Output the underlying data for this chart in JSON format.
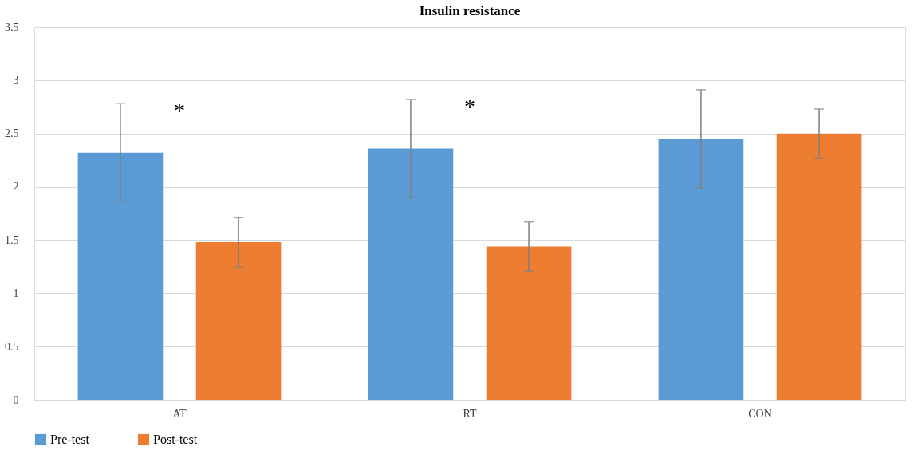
{
  "chart_data": {
    "type": "bar",
    "title": "Insulin resistance",
    "categories": [
      "AT",
      "RT",
      "CON"
    ],
    "series": [
      {
        "name": "Pre-test",
        "color": "#5b9bd5",
        "values": [
          2.32,
          2.36,
          2.45
        ],
        "errors": [
          0.46,
          0.46,
          0.46
        ]
      },
      {
        "name": "Post-test",
        "color": "#ed7d31",
        "values": [
          1.48,
          1.44,
          2.5
        ],
        "errors": [
          0.23,
          0.23,
          0.23
        ]
      }
    ],
    "ylim": [
      0,
      3.5
    ],
    "yticks": [
      0,
      0.5,
      1,
      1.5,
      2,
      2.5,
      3,
      3.5
    ],
    "grid": "y",
    "legend": "bottom",
    "annotations": [
      "*",
      "*"
    ]
  }
}
